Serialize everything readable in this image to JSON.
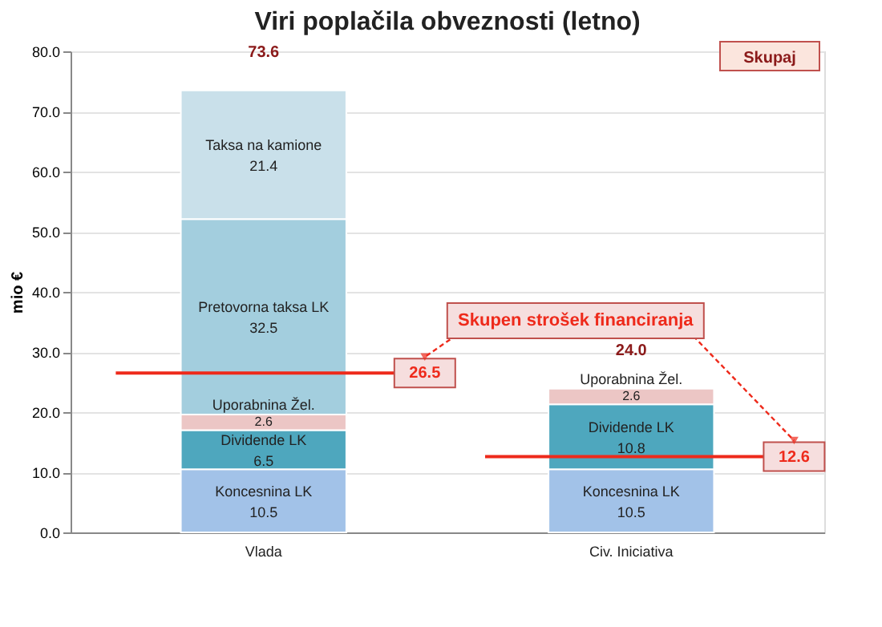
{
  "chart_data": {
    "type": "bar",
    "title": "Viri poplačila obveznosti (letno)",
    "ylabel": "mio €",
    "categories": [
      "Vlada",
      "Civ. Iniciativa"
    ],
    "stacked": true,
    "data_labels": true,
    "legend": false,
    "grid": "y",
    "series": [
      {
        "name": "Koncesnina LK",
        "color": "#a2c2e8",
        "values": [
          10.5,
          10.5
        ]
      },
      {
        "name": "Dividende LK",
        "color": "#4ea7be",
        "values": [
          6.5,
          10.8
        ]
      },
      {
        "name": "Uporabnina Žel.",
        "color": "#ecc6c5",
        "values": [
          2.6,
          2.6
        ]
      },
      {
        "name": "Pretovorna taksa LK",
        "color": "#a3cede",
        "values": [
          32.5,
          null
        ]
      },
      {
        "name": "Taksa na kamione",
        "color": "#c9e0ea",
        "values": [
          21.4,
          null
        ]
      }
    ],
    "totals": [
      "73.6",
      "24.0"
    ],
    "ylim": [
      0,
      80
    ],
    "yticks": [
      {
        "value": 0,
        "label": "0.0"
      },
      {
        "value": 10,
        "label": "10.0"
      },
      {
        "value": 20,
        "label": "20.0"
      },
      {
        "value": 30,
        "label": "30.0"
      },
      {
        "value": 40,
        "label": "40.0"
      },
      {
        "value": 50,
        "label": "50.0"
      },
      {
        "value": 60,
        "label": "60.0"
      },
      {
        "value": 70,
        "label": "70.0"
      },
      {
        "value": 80,
        "label": "80.0"
      }
    ],
    "ref_lines": [
      {
        "axis": "y",
        "value": 26.5,
        "label": "26.5",
        "color": "#ee2a1b"
      },
      {
        "axis": "y",
        "value": 12.6,
        "label": "12.6",
        "color": "#ee2a1b"
      }
    ],
    "annotations": [
      "Skupaj",
      "Skupen strošek financiranja"
    ]
  }
}
